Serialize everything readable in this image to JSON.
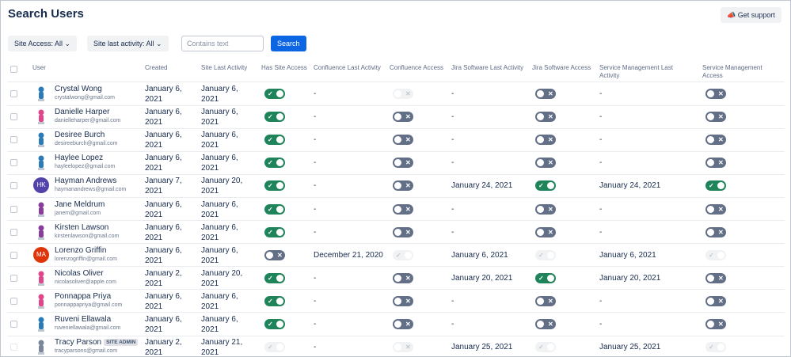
{
  "header": {
    "title": "Search Users",
    "support": "Get support"
  },
  "filters": {
    "site_access": "Site Access: All",
    "site_activity": "Site last activity: All",
    "search_placeholder": "Contains text",
    "search_button": "Search"
  },
  "table": {
    "columns": [
      "User",
      "Created",
      "Site Last Activity",
      "Has Site Access",
      "Confluence Last Activity",
      "Confluence Access",
      "Jira Software Last Activity",
      "Jira Software Access",
      "Service Management Last Activity",
      "Service Management Access"
    ],
    "rows": [
      {
        "name": "Crystal Wong",
        "email": "crystalwong@gmail.com",
        "avatar_color": "#2b7bb9",
        "created": "January 6, 2021",
        "site_last": "January 6, 2021",
        "site_access": "on",
        "conf_last": "-",
        "conf_access": "disabled-off",
        "jira_last": "-",
        "jira_access": "off",
        "sm_last": "-",
        "sm_access": "off"
      },
      {
        "name": "Danielle Harper",
        "email": "danielleharper@gmail.com",
        "avatar_color": "#e0468a",
        "created": "January 6, 2021",
        "site_last": "January 6, 2021",
        "site_access": "on",
        "conf_last": "-",
        "conf_access": "off",
        "jira_last": "-",
        "jira_access": "off",
        "sm_last": "-",
        "sm_access": "off"
      },
      {
        "name": "Desiree Burch",
        "email": "desireeburch@gmail.com",
        "avatar_color": "#2b7bb9",
        "created": "January 6, 2021",
        "site_last": "January 6, 2021",
        "site_access": "on",
        "conf_last": "-",
        "conf_access": "off",
        "jira_last": "-",
        "jira_access": "off",
        "sm_last": "-",
        "sm_access": "off"
      },
      {
        "name": "Haylee Lopez",
        "email": "hayleelopez@gmail.com",
        "avatar_color": "#2b7bb9",
        "created": "January 6, 2021",
        "site_last": "January 6, 2021",
        "site_access": "on",
        "conf_last": "-",
        "conf_access": "off",
        "jira_last": "-",
        "jira_access": "off",
        "sm_last": "-",
        "sm_access": "off"
      },
      {
        "name": "Hayman Andrews",
        "email": "haymanandrews@gmail.com",
        "initials": "HK",
        "avatar_color": "#5243aa",
        "created": "January 7, 2021",
        "site_last": "January 20, 2021",
        "site_access": "on",
        "conf_last": "-",
        "conf_access": "off",
        "jira_last": "January 24, 2021",
        "jira_access": "on",
        "sm_last": "January 24, 2021",
        "sm_access": "on"
      },
      {
        "name": "Jane Meldrum",
        "email": "janem@gmail.com",
        "avatar_color": "#8a3c9c",
        "created": "January 6, 2021",
        "site_last": "January 6, 2021",
        "site_access": "on",
        "conf_last": "-",
        "conf_access": "off",
        "jira_last": "-",
        "jira_access": "off",
        "sm_last": "-",
        "sm_access": "off"
      },
      {
        "name": "Kirsten Lawson",
        "email": "kirstenlawson@gmail.com",
        "avatar_color": "#8a3c9c",
        "created": "January 6, 2021",
        "site_last": "January 6, 2021",
        "site_access": "on",
        "conf_last": "-",
        "conf_access": "off",
        "jira_last": "-",
        "jira_access": "off",
        "sm_last": "-",
        "sm_access": "off"
      },
      {
        "name": "Lorenzo Griffin",
        "email": "lorenzogriffin@gmail.com",
        "initials": "MA",
        "avatar_color": "#de350b",
        "created": "January 6, 2021",
        "site_last": "January 6, 2021",
        "site_access": "off",
        "conf_last": "December 21, 2020",
        "conf_access": "disabled-on",
        "jira_last": "January 6, 2021",
        "jira_access": "disabled-on",
        "sm_last": "January 6, 2021",
        "sm_access": "disabled-on"
      },
      {
        "name": "Nicolas Oliver",
        "email": "nicolasoliver@apple.com",
        "avatar_color": "#e0468a",
        "created": "January 2, 2021",
        "site_last": "January 20, 2021",
        "site_access": "on",
        "conf_last": "-",
        "conf_access": "off",
        "jira_last": "January 20, 2021",
        "jira_access": "on",
        "sm_last": "January 20, 2021",
        "sm_access": "off"
      },
      {
        "name": "Ponnappa Priya",
        "email": "ponnappapriya@gmail.com",
        "avatar_color": "#e0468a",
        "created": "January 6, 2021",
        "site_last": "January 6, 2021",
        "site_access": "on",
        "conf_last": "-",
        "conf_access": "off",
        "jira_last": "-",
        "jira_access": "off",
        "sm_last": "-",
        "sm_access": "off"
      },
      {
        "name": "Ruveni Ellawala",
        "email": "ruveniellawala@gmail.com",
        "avatar_color": "#2b7bb9",
        "created": "January 6, 2021",
        "site_last": "January 6, 2021",
        "site_access": "on",
        "conf_last": "-",
        "conf_access": "off",
        "jira_last": "-",
        "jira_access": "off",
        "sm_last": "-",
        "sm_access": "off"
      },
      {
        "name": "Tracy Parson",
        "badge": "SITE ADMIN",
        "email": "tracyparsons@gmail.com",
        "avatar_color": "#7a869a",
        "created": "January 2, 2021",
        "site_last": "January 21, 2021",
        "site_access": "disabled-on",
        "conf_last": "-",
        "conf_access": "disabled-off",
        "jira_last": "January 25, 2021",
        "jira_access": "disabled-on",
        "sm_last": "January 25, 2021",
        "sm_access": "disabled-on"
      }
    ]
  }
}
